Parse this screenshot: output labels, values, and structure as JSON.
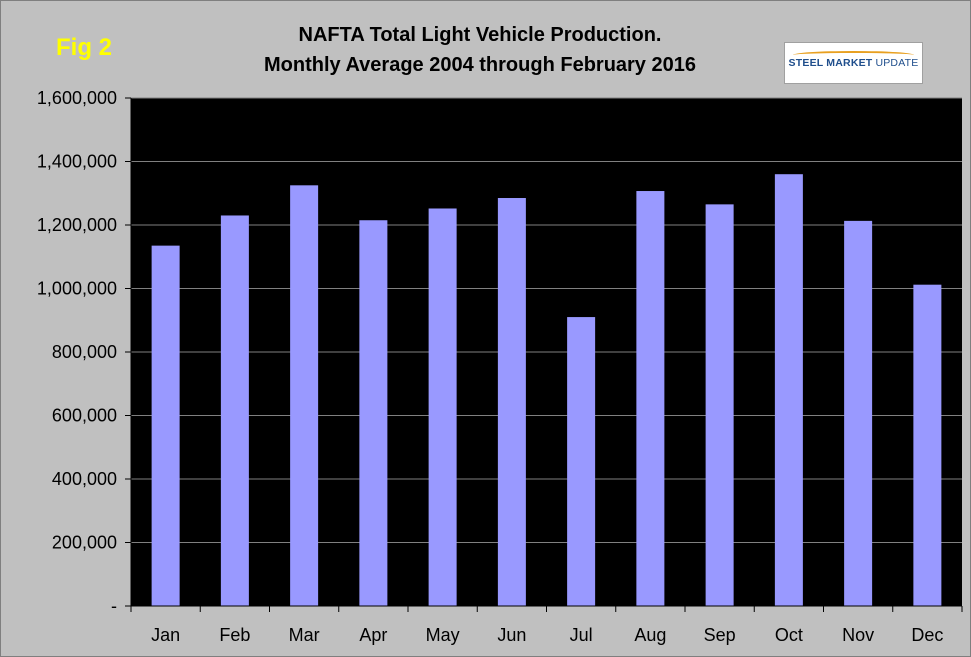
{
  "fig_label": "Fig 2",
  "title_line1": "NAFTA Total Light Vehicle Production.",
  "title_line2": "Monthly Average 2004 through February 2016",
  "logo": {
    "text_bold": "STEEL MARKET",
    "text_light": "UPDATE"
  },
  "colors": {
    "bar": "#9999ff",
    "plot_background": "#000000",
    "gridline": "#808080",
    "fig_label": "#ffff00"
  },
  "chart_data": {
    "type": "bar",
    "categories": [
      "Jan",
      "Feb",
      "Mar",
      "Apr",
      "May",
      "Jun",
      "Jul",
      "Aug",
      "Sep",
      "Oct",
      "Nov",
      "Dec"
    ],
    "values": [
      1135000,
      1230000,
      1325000,
      1215000,
      1252000,
      1285000,
      910000,
      1307000,
      1265000,
      1360000,
      1213000,
      1012000
    ],
    "ylim": [
      0,
      1600000
    ],
    "yticks": [
      0,
      200000,
      400000,
      600000,
      800000,
      1000000,
      1200000,
      1400000,
      1600000
    ],
    "ytick_labels": [
      "-",
      "200,000",
      "400,000",
      "600,000",
      "800,000",
      "1,000,000",
      "1,200,000",
      "1,400,000",
      "1,600,000"
    ],
    "grid": true,
    "legend": "none"
  }
}
